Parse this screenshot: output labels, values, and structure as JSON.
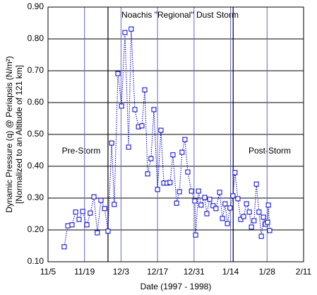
{
  "chart_data": {
    "type": "line",
    "title": "Noachis \"Regional\" Dust Storm",
    "annotations": [
      "Pre-Storm",
      "Post-Storm"
    ],
    "x_label": "Date (1997 - 1998)",
    "y_label": [
      "Dynamic Pressure (q) @ Periapsis (N/m²)",
      "[Normalized to an Altitude of 121 km]"
    ],
    "xlim": [
      0,
      98
    ],
    "xticks": [
      {
        "value": 0,
        "label": "11/5"
      },
      {
        "value": 14,
        "label": "11/19"
      },
      {
        "value": 28,
        "label": "12/3"
      },
      {
        "value": 42,
        "label": "12/17"
      },
      {
        "value": 56,
        "label": "12/31"
      },
      {
        "value": 70,
        "label": "1/14"
      },
      {
        "value": 84,
        "label": "1/28"
      },
      {
        "value": 98,
        "label": "2/11"
      }
    ],
    "ylim": [
      0.1,
      0.9
    ],
    "yticks": [
      {
        "value": 0.1,
        "label": "0.10"
      },
      {
        "value": 0.2,
        "label": "0.20"
      },
      {
        "value": 0.3,
        "label": "0.30"
      },
      {
        "value": 0.4,
        "label": "0.40"
      },
      {
        "value": 0.5,
        "label": "0.50"
      },
      {
        "value": 0.6,
        "label": "0.60"
      },
      {
        "value": 0.7,
        "label": "0.70"
      },
      {
        "value": 0.8,
        "label": "0.80"
      },
      {
        "value": 0.9,
        "label": "0.90"
      }
    ],
    "storm_lines": [
      23,
      71
    ],
    "grid": true,
    "series": [
      {
        "color": "#0000cc",
        "x": [
          6.2,
          7.6,
          9.2,
          10.6,
          11.9,
          13.3,
          14.9,
          16.2,
          17.6,
          18.9,
          20.3,
          21.7,
          23.0,
          24.4,
          25.4,
          26.8,
          28.2,
          29.5,
          30.9,
          31.9,
          33.3,
          34.7,
          36.0,
          37.1,
          38.2,
          39.5,
          40.6,
          42.0,
          43.3,
          44.4,
          45.7,
          46.8,
          47.9,
          49.3,
          50.4,
          51.4,
          52.5,
          53.6,
          55.0,
          56.3,
          56.6,
          57.7,
          58.7,
          60.1,
          60.9,
          62.0,
          63.3,
          64.4,
          65.8,
          66.9,
          67.9,
          68.8,
          69.8,
          70.9,
          71.7,
          72.8,
          73.9,
          75.0,
          76.1,
          77.2,
          78.0,
          79.0,
          79.9,
          80.9,
          81.8,
          82.6,
          83.4,
          84.2,
          84.5,
          85.0
        ],
        "values": [
          0.147,
          0.213,
          0.216,
          0.256,
          0.233,
          0.258,
          0.216,
          0.253,
          0.304,
          0.191,
          0.293,
          0.267,
          0.196,
          0.473,
          0.28,
          0.691,
          0.589,
          0.82,
          0.46,
          0.831,
          0.578,
          0.524,
          0.527,
          0.64,
          0.376,
          0.424,
          0.578,
          0.327,
          0.513,
          0.347,
          0.347,
          0.349,
          0.436,
          0.284,
          0.32,
          0.444,
          0.484,
          0.382,
          0.322,
          0.291,
          0.184,
          0.322,
          0.278,
          0.302,
          0.251,
          0.296,
          0.276,
          0.267,
          0.318,
          0.236,
          0.282,
          0.22,
          0.269,
          0.307,
          0.38,
          0.298,
          0.233,
          0.242,
          0.282,
          0.256,
          0.209,
          0.229,
          0.344,
          0.256,
          0.18,
          0.24,
          0.218,
          0.224,
          0.278,
          0.198
        ]
      }
    ]
  }
}
